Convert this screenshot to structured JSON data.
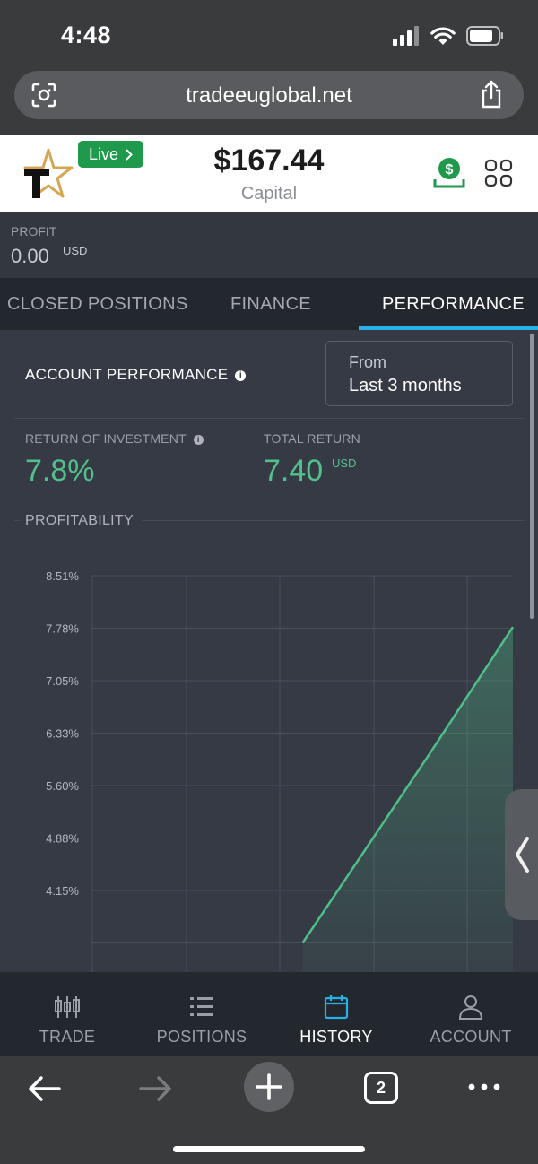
{
  "status_bar": {
    "time": "4:48",
    "icons": [
      "signal-icon",
      "wifi-icon",
      "battery-icon"
    ]
  },
  "browser": {
    "url": "tradeeuglobal.net",
    "tab_count": "2"
  },
  "header": {
    "live_label": "Live",
    "capital_value": "$167.44",
    "capital_label": "Capital"
  },
  "profit": {
    "label": "PROFIT",
    "value": "0.00",
    "unit": "USD"
  },
  "tabs": [
    {
      "label": "CLOSED POSITIONS",
      "active": false
    },
    {
      "label": "FINANCE",
      "active": false
    },
    {
      "label": "PERFORMANCE",
      "active": true
    }
  ],
  "performance": {
    "title": "ACCOUNT PERFORMANCE",
    "from_label": "From",
    "from_value": "Last 3 months",
    "roi_label": "RETURN OF INVESTMENT",
    "roi_value": "7.8%",
    "total_return_label": "TOTAL RETURN",
    "total_return_value": "7.40",
    "total_return_unit": "USD",
    "profitability_label": "PROFITABILITY"
  },
  "chart_data": {
    "type": "area",
    "title": "",
    "xlabel": "",
    "ylabel": "",
    "y_ticks": [
      "8.51%",
      "7.78%",
      "7.05%",
      "6.33%",
      "5.60%",
      "4.88%",
      "4.15%"
    ],
    "ylim": [
      3.43,
      8.51
    ],
    "x": [
      0.0,
      0.5,
      0.8,
      1.0
    ],
    "values": [
      3.43,
      3.43,
      6.03,
      7.8
    ],
    "colors": {
      "line": "#4fbf88",
      "grid": "#4a4f5a"
    },
    "grid": true
  },
  "nav": [
    {
      "label": "TRADE",
      "icon": "candlestick-icon",
      "active": false
    },
    {
      "label": "POSITIONS",
      "icon": "list-icon",
      "active": false
    },
    {
      "label": "HISTORY",
      "icon": "calendar-icon",
      "active": true
    },
    {
      "label": "ACCOUNT",
      "icon": "user-icon",
      "active": false
    }
  ],
  "colors": {
    "accent": "#29b0e6",
    "positive": "#51c08a",
    "live": "#1f9a4c"
  }
}
